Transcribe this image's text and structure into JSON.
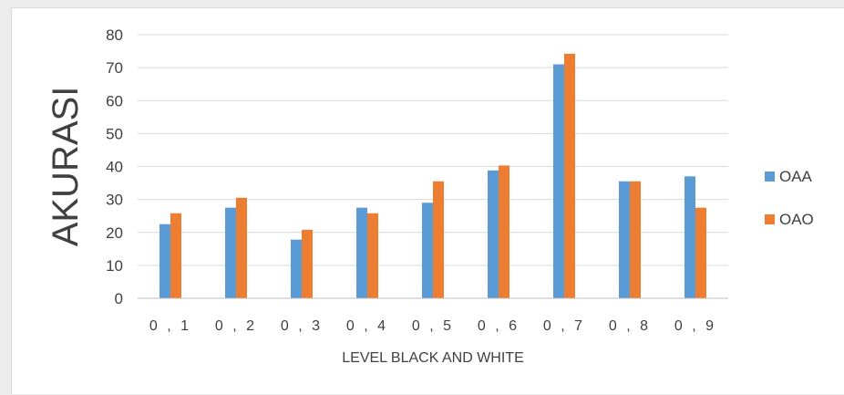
{
  "chart_data": {
    "type": "bar",
    "title": "",
    "xlabel": "LEVEL BLACK AND WHITE",
    "ylabel": "AKURASI",
    "categories": [
      "0,1",
      "0,2",
      "0,3",
      "0,4",
      "0,5",
      "0,6",
      "0,7",
      "0,8",
      "0,9"
    ],
    "series": [
      {
        "name": "OAA",
        "color": "#5b9bd5",
        "values": [
          22.5,
          27.5,
          17.8,
          27.5,
          29.0,
          38.8,
          71.0,
          35.5,
          37.0
        ]
      },
      {
        "name": "OAO",
        "color": "#ed7d31",
        "values": [
          25.8,
          30.5,
          20.8,
          25.8,
          35.5,
          40.3,
          74.2,
          35.5,
          27.5
        ]
      }
    ],
    "ylim": [
      0,
      80
    ],
    "yticks": [
      0,
      10,
      20,
      30,
      40,
      50,
      60,
      70,
      80
    ],
    "grid": true,
    "legend_position": "right"
  }
}
